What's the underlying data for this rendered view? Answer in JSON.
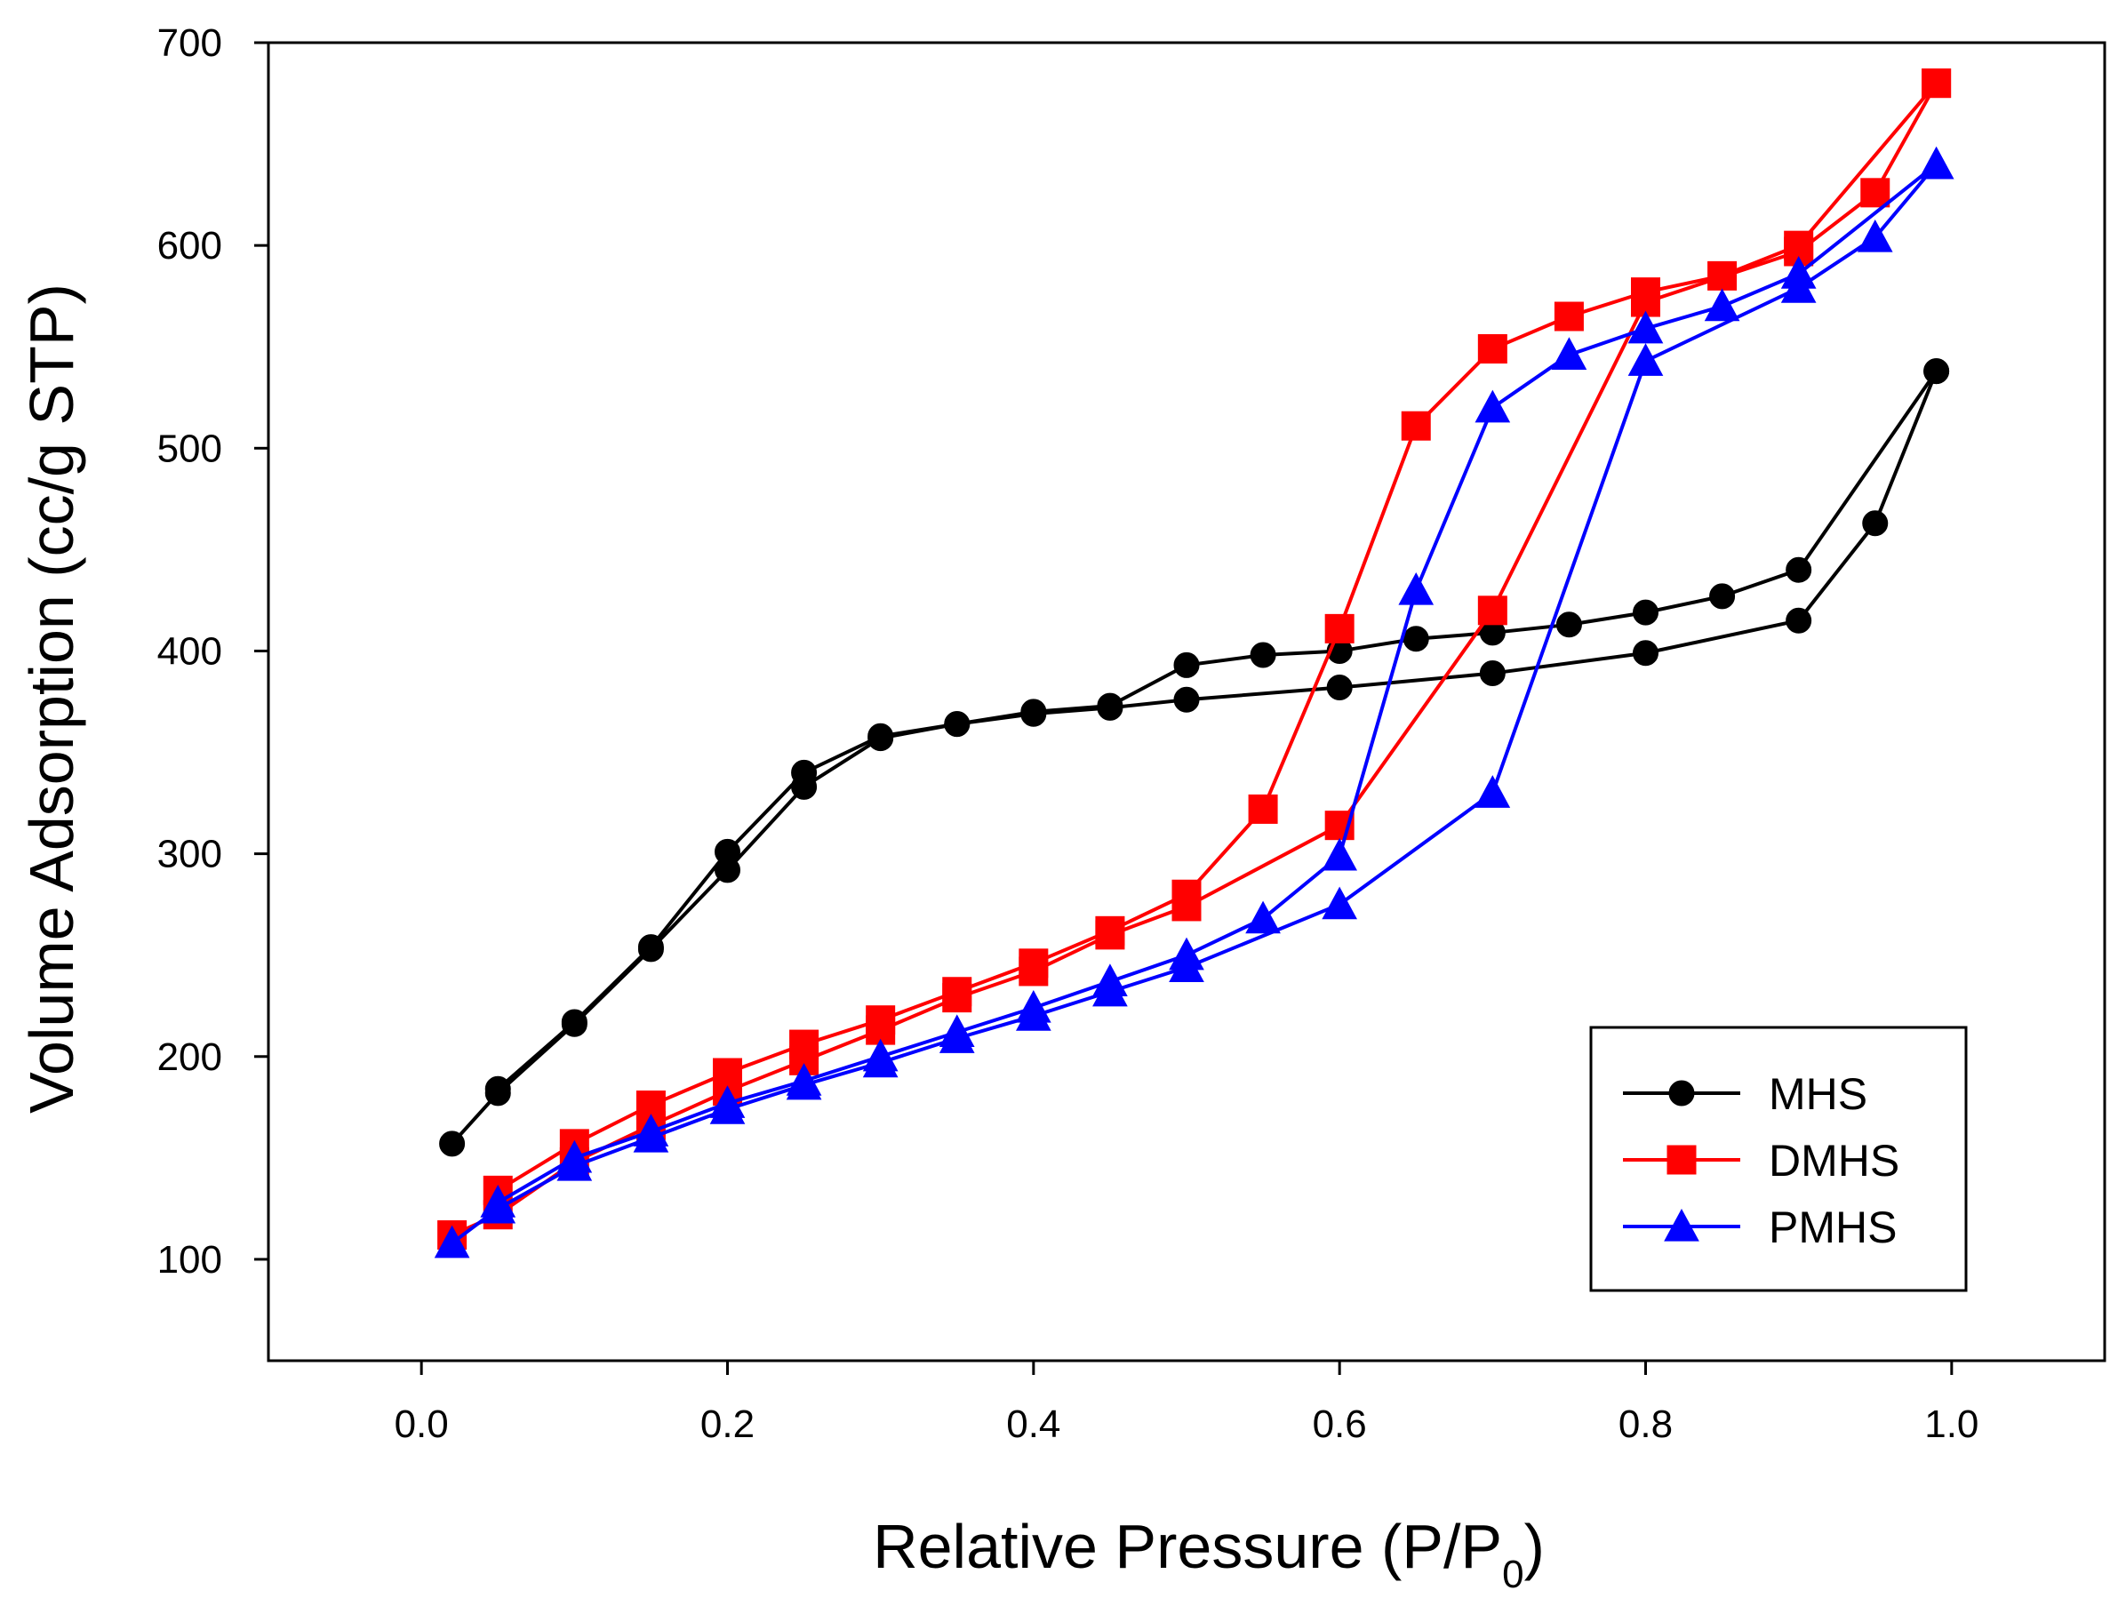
{
  "chart_data": {
    "type": "line",
    "title": "",
    "xlabel": "Relative Pressure (P/P",
    "xlabel_subscript": "0",
    "xlabel_suffix": ")",
    "ylabel": "Volume Adsorption (cc/g STP)",
    "xlim": [
      -0.1,
      1.1
    ],
    "ylim": [
      50,
      700
    ],
    "xticks": [
      0.0,
      0.2,
      0.4,
      0.6,
      0.8,
      1.0
    ],
    "xtick_labels": [
      "0.0",
      "0.2",
      "0.4",
      "0.6",
      "0.8",
      "1.0"
    ],
    "yticks": [
      100,
      200,
      300,
      400,
      500,
      600,
      700
    ],
    "ytick_labels": [
      "100",
      "200",
      "300",
      "400",
      "500",
      "600",
      "700"
    ],
    "grid": false,
    "legend_position": "bottom-right",
    "series": [
      {
        "name": "MHS",
        "color": "#000000",
        "marker": "circle",
        "adsorption": {
          "x": [
            0.02,
            0.05,
            0.1,
            0.15,
            0.2,
            0.25,
            0.3,
            0.35,
            0.4,
            0.45,
            0.5,
            0.6,
            0.7,
            0.8,
            0.9,
            0.95,
            0.99
          ],
          "y": [
            157,
            182,
            216,
            253,
            292,
            333,
            357,
            364,
            369,
            372,
            376,
            382,
            389,
            399,
            415,
            463,
            538
          ]
        },
        "desorption": {
          "x": [
            0.99,
            0.9,
            0.85,
            0.8,
            0.75,
            0.7,
            0.65,
            0.6,
            0.55,
            0.5,
            0.45,
            0.4,
            0.35,
            0.3,
            0.25,
            0.2,
            0.15,
            0.1,
            0.05
          ],
          "y": [
            538,
            440,
            427,
            419,
            413,
            409,
            406,
            400,
            398,
            393,
            373,
            370,
            364,
            358,
            340,
            301,
            254,
            217,
            184
          ]
        }
      },
      {
        "name": "DMHS",
        "color": "#ff0000",
        "marker": "square",
        "adsorption": {
          "x": [
            0.02,
            0.05,
            0.1,
            0.15,
            0.2,
            0.25,
            0.3,
            0.35,
            0.4,
            0.45,
            0.5,
            0.6,
            0.7,
            0.8,
            0.9,
            0.95,
            0.99
          ],
          "y": [
            112,
            122,
            148,
            166,
            183,
            198,
            213,
            229,
            242,
            260,
            274,
            314,
            420,
            572,
            597,
            626,
            680
          ]
        },
        "desorption": {
          "x": [
            0.99,
            0.9,
            0.85,
            0.8,
            0.75,
            0.7,
            0.65,
            0.6,
            0.55,
            0.5,
            0.45,
            0.4,
            0.35,
            0.3,
            0.25,
            0.2,
            0.15,
            0.1,
            0.05
          ],
          "y": [
            680,
            600,
            585,
            577,
            565,
            549,
            511,
            411,
            322,
            280,
            262,
            246,
            232,
            218,
            206,
            192,
            176,
            157,
            134
          ]
        }
      },
      {
        "name": "PMHS",
        "color": "#0000ff",
        "marker": "triangle",
        "adsorption": {
          "x": [
            0.02,
            0.05,
            0.1,
            0.15,
            0.2,
            0.25,
            0.3,
            0.35,
            0.4,
            0.45,
            0.5,
            0.6,
            0.7,
            0.8,
            0.9,
            0.95,
            0.99
          ],
          "y": [
            108,
            125,
            146,
            160,
            174,
            186,
            197,
            209,
            220,
            232,
            244,
            275,
            330,
            543,
            579,
            604,
            640
          ]
        },
        "desorption": {
          "x": [
            0.99,
            0.9,
            0.85,
            0.8,
            0.75,
            0.7,
            0.65,
            0.6,
            0.55,
            0.5,
            0.45,
            0.4,
            0.35,
            0.3,
            0.25,
            0.2,
            0.15,
            0.1,
            0.05
          ],
          "y": [
            640,
            586,
            570,
            559,
            546,
            520,
            430,
            299,
            268,
            250,
            237,
            224,
            212,
            200,
            188,
            177,
            163,
            150,
            128
          ]
        }
      }
    ]
  }
}
